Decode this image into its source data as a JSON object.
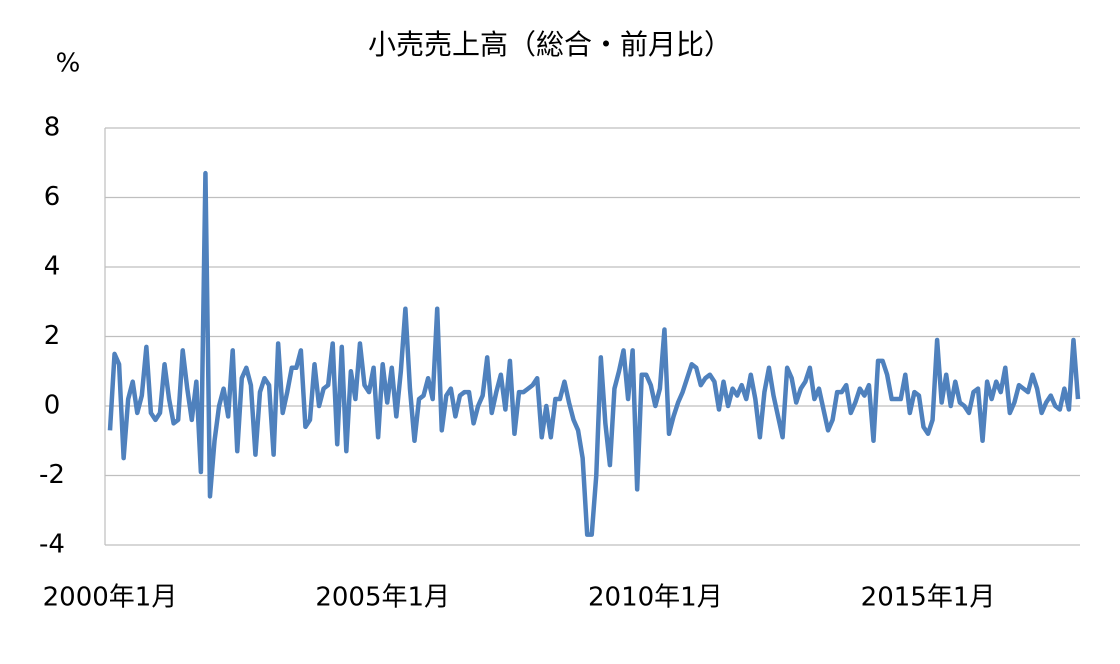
{
  "chart_data": {
    "type": "line",
    "title": "小売売上高（総合・前月比）",
    "y_axis_label": "%",
    "categories": [
      "2000年1月",
      null,
      null,
      null,
      null,
      null,
      null,
      null,
      null,
      null,
      null,
      null,
      null,
      null,
      null,
      null,
      null,
      null,
      null,
      null,
      null,
      null,
      null,
      null,
      null,
      null,
      null,
      null,
      null,
      null,
      null,
      null,
      null,
      null,
      null,
      null,
      null,
      null,
      null,
      null,
      null,
      null,
      null,
      null,
      null,
      null,
      null,
      null,
      null,
      null,
      null,
      null,
      null,
      null,
      null,
      null,
      null,
      null,
      null,
      null,
      "2005年1月",
      null,
      null,
      null,
      null,
      null,
      null,
      null,
      null,
      null,
      null,
      null,
      null,
      null,
      null,
      null,
      null,
      null,
      null,
      null,
      null,
      null,
      null,
      null,
      null,
      null,
      null,
      null,
      null,
      null,
      null,
      null,
      null,
      null,
      null,
      null,
      null,
      null,
      null,
      null,
      null,
      null,
      null,
      null,
      null,
      null,
      null,
      null,
      null,
      null,
      null,
      null,
      null,
      null,
      null,
      null,
      null,
      null,
      null,
      null,
      "2010年1月",
      null,
      null,
      null,
      null,
      null,
      null,
      null,
      null,
      null,
      null,
      null,
      null,
      null,
      null,
      null,
      null,
      null,
      null,
      null,
      null,
      null,
      null,
      null,
      null,
      null,
      null,
      null,
      null,
      null,
      null,
      null,
      null,
      null,
      null,
      null,
      null,
      null,
      null,
      null,
      null,
      null,
      null,
      null,
      null,
      null,
      null,
      null,
      null,
      null,
      null,
      null,
      null,
      null,
      null,
      null,
      null,
      null,
      null,
      null,
      "2015年1月",
      null,
      null,
      null,
      null,
      null,
      null,
      null,
      null,
      null,
      null,
      null,
      null,
      null,
      null,
      null,
      null,
      null,
      null,
      null,
      null,
      null,
      null,
      null,
      null,
      null,
      null,
      null,
      null,
      null,
      null,
      null,
      null,
      null
    ],
    "series": [
      {
        "color": "#4f81bd",
        "values": [
          -0.7,
          1.5,
          1.2,
          -1.5,
          0.2,
          0.7,
          -0.2,
          0.3,
          1.7,
          -0.2,
          -0.4,
          -0.2,
          1.2,
          0.2,
          -0.5,
          -0.4,
          1.6,
          0.5,
          -0.4,
          0.7,
          -1.9,
          6.7,
          -2.6,
          -1.0,
          0.0,
          0.5,
          -0.3,
          1.6,
          -1.3,
          0.8,
          1.1,
          0.6,
          -1.4,
          0.4,
          0.8,
          0.6,
          -1.4,
          1.8,
          -0.2,
          0.4,
          1.1,
          1.1,
          1.6,
          -0.6,
          -0.4,
          1.2,
          0.0,
          0.5,
          0.6,
          1.8,
          -1.1,
          1.7,
          -1.3,
          1.0,
          0.2,
          1.8,
          0.6,
          0.4,
          1.1,
          -0.9,
          1.2,
          0.1,
          1.1,
          -0.3,
          1.0,
          2.8,
          0.5,
          -1.0,
          0.2,
          0.3,
          0.8,
          0.2,
          2.8,
          -0.7,
          0.3,
          0.5,
          -0.3,
          0.3,
          0.4,
          0.4,
          -0.5,
          0.0,
          0.3,
          1.4,
          -0.2,
          0.4,
          0.9,
          -0.1,
          1.3,
          -0.8,
          0.4,
          0.4,
          0.5,
          0.6,
          0.8,
          -0.9,
          0.0,
          -0.9,
          0.2,
          0.2,
          0.7,
          0.1,
          -0.4,
          -0.7,
          -1.5,
          -3.7,
          -3.7,
          -2.0,
          1.4,
          -0.5,
          -1.7,
          0.5,
          1.0,
          1.6,
          0.2,
          1.6,
          -2.4,
          0.9,
          0.9,
          0.6,
          0.0,
          0.5,
          2.2,
          -0.8,
          -0.3,
          0.1,
          0.4,
          0.8,
          1.2,
          1.1,
          0.6,
          0.8,
          0.9,
          0.7,
          -0.1,
          0.7,
          0.0,
          0.5,
          0.3,
          0.6,
          0.2,
          0.9,
          0.2,
          -0.9,
          0.4,
          1.1,
          0.3,
          -0.3,
          -0.9,
          1.1,
          0.8,
          0.1,
          0.5,
          0.7,
          1.1,
          0.2,
          0.5,
          -0.1,
          -0.7,
          -0.4,
          0.4,
          0.4,
          0.6,
          -0.2,
          0.1,
          0.5,
          0.3,
          0.6,
          -1.0,
          1.3,
          1.3,
          0.9,
          0.2,
          0.2,
          0.2,
          0.9,
          -0.2,
          0.4,
          0.3,
          -0.6,
          -0.8,
          -0.4,
          1.9,
          0.1,
          0.9,
          0.0,
          0.7,
          0.1,
          0.0,
          -0.2,
          0.4,
          0.5,
          -1.0,
          0.7,
          0.2,
          0.7,
          0.4,
          1.1,
          -0.2,
          0.1,
          0.6,
          0.5,
          0.4,
          0.9,
          0.5,
          -0.2,
          0.1,
          0.3,
          0.0,
          -0.1,
          0.5,
          -0.1,
          1.9,
          0.2
        ]
      }
    ],
    "ylim": [
      -4,
      8
    ],
    "yticks": [
      -4,
      -2,
      0,
      2,
      4,
      6,
      8
    ],
    "grid": true,
    "tick_color": "#000000",
    "negative_tick_color": "#ff0000"
  }
}
